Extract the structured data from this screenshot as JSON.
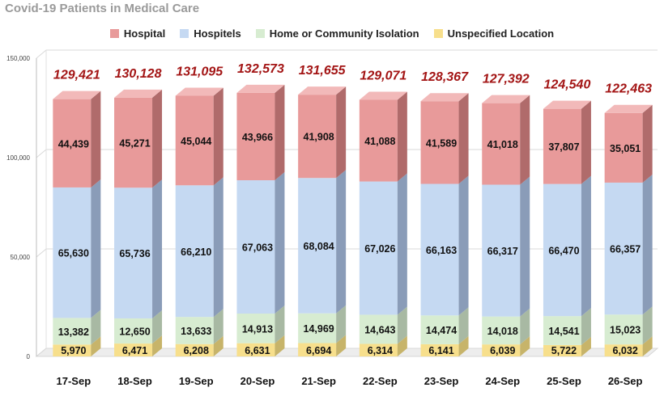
{
  "chart_data": {
    "type": "bar",
    "stacked": true,
    "title": "Covid-19 Patients in Medical Care",
    "xlabel": "",
    "ylabel": "",
    "ylim": [
      0,
      150000
    ],
    "yticks": [
      "0",
      "50,000",
      "100,000",
      "150,000"
    ],
    "ytick_values": [
      0,
      50000,
      100000,
      150000
    ],
    "grid": true,
    "legend_position": "top",
    "categories": [
      "17-Sep",
      "18-Sep",
      "19-Sep",
      "20-Sep",
      "21-Sep",
      "22-Sep",
      "23-Sep",
      "24-Sep",
      "25-Sep",
      "26-Sep"
    ],
    "series": [
      {
        "name": "Unspecified Location",
        "color": "#f7df8c",
        "side_color": "#c7b46a",
        "top_color": "#fbeab0",
        "values": [
          5970,
          6471,
          6208,
          6631,
          6694,
          6314,
          6141,
          6039,
          5722,
          6032
        ],
        "labels": [
          "5,970",
          "6,471",
          "6,208",
          "6,631",
          "6,694",
          "6,314",
          "6,141",
          "6,039",
          "5,722",
          "6,032"
        ]
      },
      {
        "name": "Home or Community Isolation",
        "color": "#d7ecd1",
        "side_color": "#a8b9a3",
        "top_color": "#e6f3e1",
        "values": [
          13382,
          12650,
          13633,
          14913,
          14969,
          14643,
          14474,
          14018,
          14541,
          15023
        ],
        "labels": [
          "13,382",
          "12,650",
          "13,633",
          "14,913",
          "14,969",
          "14,643",
          "14,474",
          "14,018",
          "14,541",
          "15,023"
        ]
      },
      {
        "name": "Hospitels",
        "color": "#c5d9f2",
        "side_color": "#8a9cb8",
        "top_color": "#d9e6f7",
        "values": [
          65630,
          65736,
          66210,
          67063,
          68084,
          67026,
          66163,
          66317,
          66470,
          66357
        ],
        "labels": [
          "65,630",
          "65,736",
          "66,210",
          "67,063",
          "68,084",
          "67,026",
          "66,163",
          "66,317",
          "66,470",
          "66,357"
        ]
      },
      {
        "name": "Hospital",
        "color": "#e89a9a",
        "side_color": "#b06b6b",
        "top_color": "#f2b9b9",
        "values": [
          44439,
          45271,
          45044,
          43966,
          41908,
          41088,
          41589,
          41018,
          37807,
          35051
        ],
        "labels": [
          "44,439",
          "45,271",
          "45,044",
          "43,966",
          "41,908",
          "41,088",
          "41,589",
          "41,018",
          "37,807",
          "35,051"
        ]
      }
    ],
    "totals": [
      129421,
      130128,
      131095,
      132573,
      131655,
      129071,
      128367,
      127392,
      124540,
      122463
    ],
    "total_labels": [
      "129,421",
      "130,128",
      "131,095",
      "132,573",
      "131,655",
      "129,071",
      "128,367",
      "127,392",
      "124,540",
      "122,463"
    ],
    "total_label_color": "#a31515"
  },
  "legend": {
    "items": [
      {
        "label": "Hospital",
        "color": "#e89a9a"
      },
      {
        "label": "Hospitels",
        "color": "#c5d9f2"
      },
      {
        "label": "Home or Community Isolation",
        "color": "#d7ecd1"
      },
      {
        "label": "Unspecified Location",
        "color": "#f7df8c"
      }
    ]
  }
}
